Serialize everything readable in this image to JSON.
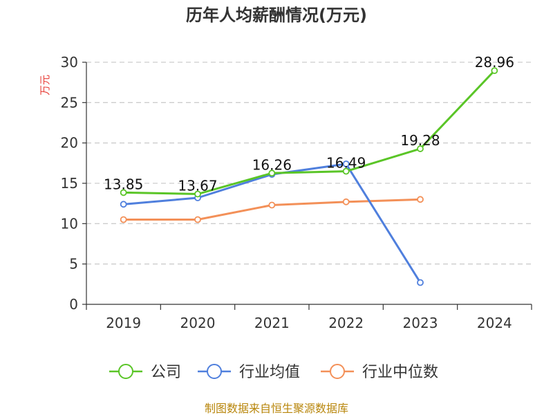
{
  "chart_data": {
    "type": "line",
    "title": "历年人均薪酬情况(万元)",
    "ylabel": "万元",
    "xlabel": "",
    "categories": [
      "2019",
      "2020",
      "2021",
      "2022",
      "2023",
      "2024"
    ],
    "yticks": [
      "0",
      "5",
      "10",
      "15",
      "20",
      "25",
      "30"
    ],
    "ylim": [
      0,
      30
    ],
    "grid": "horizontal-dashed",
    "legend_position": "bottom",
    "series": [
      {
        "name": "公司",
        "color": "#5ac527",
        "values": [
          13.85,
          13.67,
          16.26,
          16.49,
          19.28,
          28.96
        ],
        "labels": [
          "13.85",
          "13.67",
          "16.26",
          "16.49",
          "19.28",
          "28.96"
        ]
      },
      {
        "name": "行业均值",
        "color": "#4f7fdd",
        "values": [
          12.4,
          13.2,
          16.1,
          17.4,
          2.7,
          null
        ]
      },
      {
        "name": "行业中位数",
        "color": "#f39058",
        "values": [
          10.5,
          10.5,
          12.3,
          12.7,
          13.0,
          null
        ]
      }
    ],
    "source": "制图数据来自恒生聚源数据库"
  },
  "colors": {
    "title": "#333333",
    "axis": "#333333",
    "tick_label": "#333333",
    "grid": "#cccccc",
    "unit_label": "#e8403a",
    "data_label": "#111111",
    "legend_text": "#333333",
    "source": "#b8860b"
  }
}
